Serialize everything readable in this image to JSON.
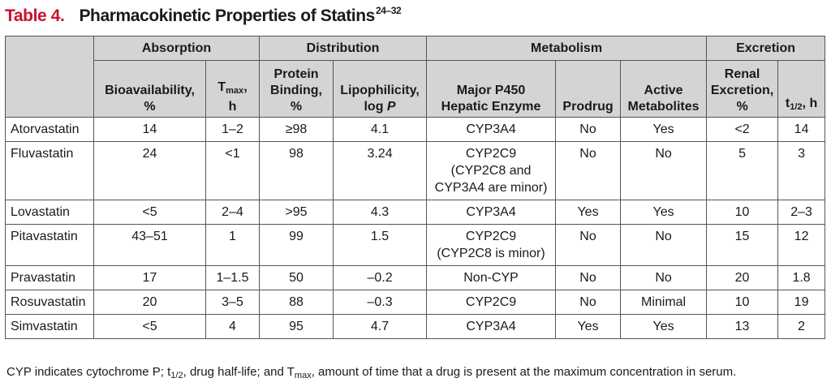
{
  "title": {
    "number": "Table 4.",
    "text": "Pharmacokinetic Properties of Statins",
    "refs": "24–32"
  },
  "groups": {
    "absorption": "Absorption",
    "distribution": "Distribution",
    "metabolism": "Metabolism",
    "excretion": "Excretion"
  },
  "columns": {
    "bioavailability": [
      "Bioavailability,",
      "%"
    ],
    "tmax_t": "T",
    "tmax_sub": "max",
    "tmax_comma": ",",
    "tmax_unit": "h",
    "protein": [
      "Protein",
      "Binding,",
      "%"
    ],
    "lipophilicity_main": "Lipophilicity,",
    "lipophilicity_log": "log ",
    "lipophilicity_p": "P",
    "p450": [
      "Major P450",
      "Hepatic Enzyme"
    ],
    "prodrug": "Prodrug",
    "active": [
      "Active",
      "Metabolites"
    ],
    "renal": [
      "Renal",
      "Excretion,",
      "%"
    ],
    "half_t": "t",
    "half_sub": "1/2",
    "half_unit": ", h"
  },
  "rows": [
    {
      "drug": "Atorvastatin",
      "bio": "14",
      "tmax": "1–2",
      "protein": "≥98",
      "lipo": "4.1",
      "p450": [
        "CYP3A4"
      ],
      "prodrug": "No",
      "active": "Yes",
      "renal": "<2",
      "half": "14"
    },
    {
      "drug": "Fluvastatin",
      "bio": "24",
      "tmax": "<1",
      "protein": "98",
      "lipo": "3.24",
      "p450": [
        "CYP2C9",
        "(CYP2C8 and",
        "CYP3A4 are minor)"
      ],
      "prodrug": "No",
      "active": "No",
      "renal": "5",
      "half": "3"
    },
    {
      "drug": "Lovastatin",
      "bio": "<5",
      "tmax": "2–4",
      "protein": ">95",
      "lipo": "4.3",
      "p450": [
        "CYP3A4"
      ],
      "prodrug": "Yes",
      "active": "Yes",
      "renal": "10",
      "half": "2–3"
    },
    {
      "drug": "Pitavastatin",
      "bio": "43–51",
      "tmax": "1",
      "protein": "99",
      "lipo": "1.5",
      "p450": [
        "CYP2C9",
        "(CYP2C8 is minor)"
      ],
      "prodrug": "No",
      "active": "No",
      "renal": "15",
      "half": "12"
    },
    {
      "drug": "Pravastatin",
      "bio": "17",
      "tmax": "1–1.5",
      "protein": "50",
      "lipo": "–0.2",
      "p450": [
        "Non-CYP"
      ],
      "prodrug": "No",
      "active": "No",
      "renal": "20",
      "half": "1.8"
    },
    {
      "drug": "Rosuvastatin",
      "bio": "20",
      "tmax": "3–5",
      "protein": "88",
      "lipo": "–0.3",
      "p450": [
        "CYP2C9"
      ],
      "prodrug": "No",
      "active": "Minimal",
      "renal": "10",
      "half": "19"
    },
    {
      "drug": "Simvastatin",
      "bio": "<5",
      "tmax": "4",
      "protein": "95",
      "lipo": "4.7",
      "p450": [
        "CYP3A4"
      ],
      "prodrug": "Yes",
      "active": "Yes",
      "renal": "13",
      "half": "2"
    }
  ],
  "footnote": {
    "p1": "CYP indicates cytochrome P; t",
    "sub1": "1/2",
    "p2": ", drug half-life; and T",
    "sub2": "max",
    "p3": ", amount of time that a drug is present at the maximum concentration in serum."
  }
}
